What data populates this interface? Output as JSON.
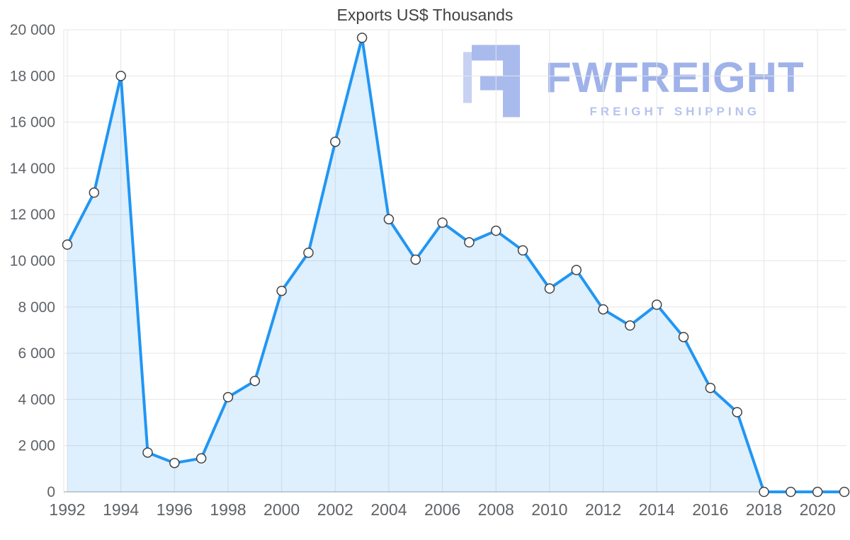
{
  "chart_data": {
    "type": "area",
    "title": "Exports US$ Thousands",
    "xlabel": "",
    "ylabel": "",
    "x": [
      1992,
      1993,
      1994,
      1995,
      1996,
      1997,
      1998,
      1999,
      2000,
      2001,
      2002,
      2003,
      2004,
      2005,
      2006,
      2007,
      2008,
      2009,
      2010,
      2011,
      2012,
      2013,
      2014,
      2015,
      2016,
      2017,
      2018,
      2019,
      2020,
      2021
    ],
    "values": [
      10700,
      12950,
      18000,
      1700,
      1250,
      1450,
      4100,
      4800,
      8700,
      10350,
      15150,
      19650,
      11800,
      10050,
      11650,
      10800,
      11300,
      10450,
      8800,
      9600,
      7900,
      7200,
      8100,
      6700,
      4500,
      3450,
      0,
      0,
      0,
      0
    ],
    "ylim": [
      0,
      20000
    ],
    "y_tick_step": 2000,
    "x_tick_years": [
      1992,
      1994,
      1996,
      1998,
      2000,
      2002,
      2004,
      2006,
      2008,
      2010,
      2012,
      2014,
      2016,
      2018,
      2020
    ],
    "grid": true,
    "legend_position": "none",
    "colors": {
      "line": "#2196f3",
      "fill": "rgba(33,150,243,0.15)",
      "marker_fill": "#ffffff",
      "marker_stroke": "#424242",
      "grid": "#e6e6e6",
      "axis": "#9e9e9e",
      "tick_text": "#5f6368",
      "title_text": "#424242"
    }
  },
  "watermark": {
    "brand": "FWFREIGHT",
    "tagline": "FREIGHT SHIPPING",
    "color": "#9fb2e9"
  }
}
